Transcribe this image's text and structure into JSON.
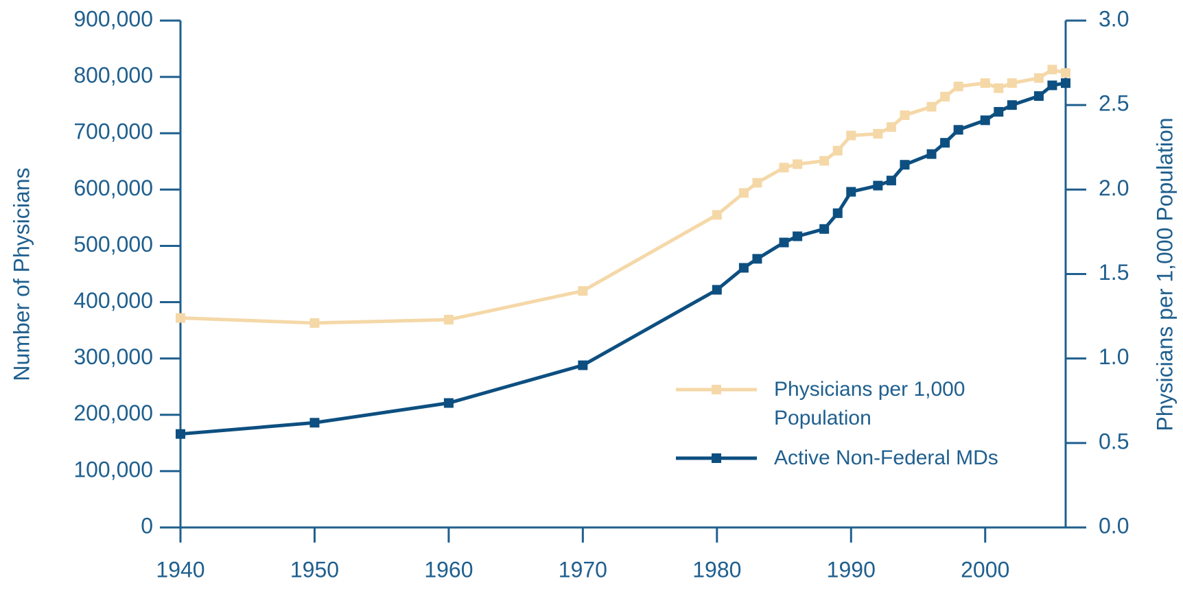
{
  "chart_data": {
    "type": "line",
    "x": [
      1940,
      1950,
      1960,
      1970,
      1980,
      1982,
      1983,
      1985,
      1986,
      1988,
      1989,
      1990,
      1992,
      1993,
      1994,
      1996,
      1997,
      1998,
      2000,
      2001,
      2002,
      2004,
      2005,
      2006
    ],
    "series": [
      {
        "name": "Physicians per 1,000 Population",
        "color": "#f5d8a8",
        "axis": "y2",
        "values": [
          1.24,
          1.21,
          1.23,
          1.4,
          1.85,
          1.98,
          2.04,
          2.13,
          2.15,
          2.17,
          2.23,
          2.32,
          2.33,
          2.37,
          2.44,
          2.49,
          2.55,
          2.61,
          2.63,
          2.6,
          2.63,
          2.66,
          2.71,
          2.69
        ]
      },
      {
        "name": "Active Non-Federal MDs",
        "color": "#0d4f80",
        "values": [
          166000,
          186000,
          221000,
          288000,
          422000,
          461000,
          477000,
          506000,
          517000,
          530000,
          558000,
          596000,
          607000,
          616000,
          644000,
          663000,
          683000,
          706000,
          723000,
          738000,
          750000,
          766000,
          785000,
          789000
        ]
      }
    ],
    "ylabel": "Number of Physicians",
    "y2label": "Physicians per 1,000 Population",
    "xlim": [
      1940,
      2006
    ],
    "xticks": [
      1940,
      1950,
      1960,
      1970,
      1980,
      1990,
      2000
    ],
    "ylim": [
      0,
      900000
    ],
    "yticks": [
      0,
      {
        "value": 100000,
        "label": "100,000"
      },
      {
        "value": 200000,
        "label": "200,000"
      },
      {
        "value": 300000,
        "label": "300,000"
      },
      {
        "value": 400000,
        "label": "400,000"
      },
      {
        "value": 500000,
        "label": "500,000"
      },
      {
        "value": 600000,
        "label": "600,000"
      },
      {
        "value": 700000,
        "label": "700,000"
      },
      {
        "value": 800000,
        "label": "800,000"
      },
      {
        "value": 900000,
        "label": "900,000"
      }
    ],
    "y2lim": [
      0,
      3
    ],
    "y2ticks": [
      {
        "value": 0,
        "label": "0.0"
      },
      0.5,
      {
        "value": 1,
        "label": "1.0"
      },
      1.5,
      {
        "value": 2,
        "label": "2.0"
      },
      2.5,
      {
        "value": 3,
        "label": "3.0"
      }
    ],
    "grid": false,
    "legend": "lower right",
    "axis_color": "#1f5f8e"
  }
}
